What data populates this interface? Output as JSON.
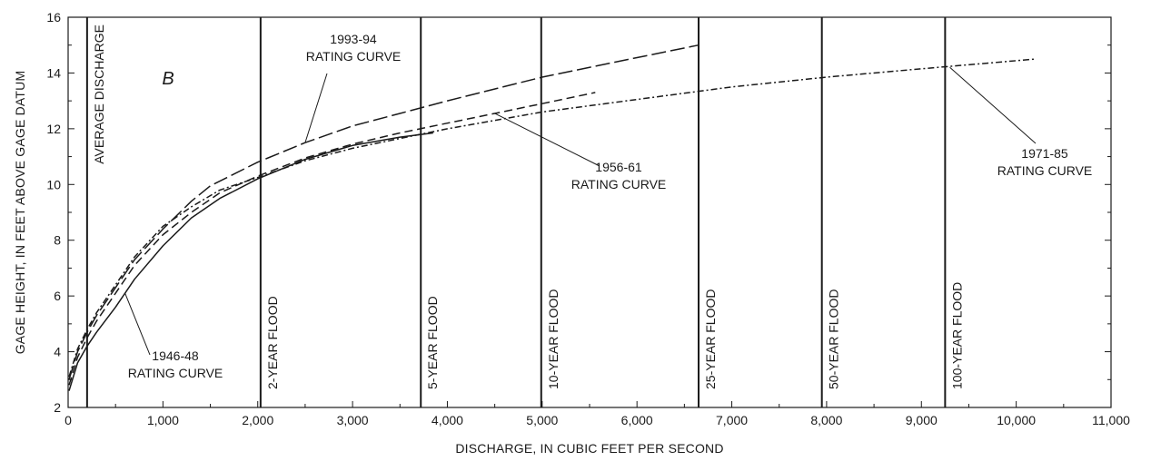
{
  "chart_data": {
    "type": "line",
    "panel_label": "B",
    "xlabel": "DISCHARGE, IN CUBIC FEET PER SECOND",
    "ylabel": "GAGE HEIGHT, IN FEET ABOVE GAGE DATUM",
    "xlim": [
      0,
      11000
    ],
    "ylim": [
      2,
      16
    ],
    "x_ticks": [
      0,
      1000,
      2000,
      3000,
      4000,
      5000,
      6000,
      7000,
      8000,
      9000,
      10000,
      11000
    ],
    "x_tick_labels": [
      "0",
      "1,000",
      "2,000",
      "3,000",
      "4,000",
      "5,000",
      "6,000",
      "7,000",
      "8,000",
      "9,000",
      "10,000",
      "11,000"
    ],
    "y_ticks": [
      2,
      4,
      6,
      8,
      10,
      12,
      14,
      16
    ],
    "y_tick_labels": [
      "2",
      "4",
      "6",
      "8",
      "10",
      "12",
      "14",
      "16"
    ],
    "grid": false,
    "legend": "none",
    "reference_lines": [
      {
        "x": 200,
        "label": "AVERAGE DISCHARGE"
      },
      {
        "x": 2030,
        "label": "2-YEAR FLOOD"
      },
      {
        "x": 3720,
        "label": "5-YEAR FLOOD"
      },
      {
        "x": 4990,
        "label": "10-YEAR FLOOD"
      },
      {
        "x": 6650,
        "label": "25-YEAR FLOOD"
      },
      {
        "x": 7950,
        "label": "50-YEAR FLOOD"
      },
      {
        "x": 9250,
        "label": "100-YEAR FLOOD"
      }
    ],
    "series": [
      {
        "name": "1946-48 RATING CURVE",
        "dash": "",
        "x": [
          10,
          100,
          200,
          300,
          500,
          700,
          1000,
          1300,
          1600,
          2000,
          2500,
          3000,
          3500,
          3850
        ],
        "y": [
          2.6,
          3.6,
          4.2,
          4.7,
          5.6,
          6.6,
          7.8,
          8.8,
          9.5,
          10.2,
          10.9,
          11.4,
          11.7,
          11.85
        ]
      },
      {
        "name": "1956-61 RATING CURVE",
        "dash": "9,5",
        "x": [
          10,
          100,
          200,
          300,
          500,
          700,
          1000,
          1300,
          1600,
          2000,
          2500,
          3000,
          3500,
          4000,
          4500,
          5000,
          5560
        ],
        "y": [
          2.8,
          3.8,
          4.5,
          5.1,
          6.1,
          7.1,
          8.2,
          9.0,
          9.7,
          10.3,
          10.95,
          11.45,
          11.85,
          12.2,
          12.55,
          12.9,
          13.3
        ]
      },
      {
        "name": "1971-85 RATING CURVE",
        "dash": "7,3,2,3",
        "x": [
          10,
          100,
          200,
          300,
          500,
          700,
          1000,
          1300,
          1600,
          2000,
          2500,
          3000,
          3500,
          4000,
          5000,
          6000,
          7000,
          8000,
          9000,
          10200
        ],
        "y": [
          3.1,
          4.1,
          4.8,
          5.4,
          6.4,
          7.4,
          8.5,
          9.2,
          9.8,
          10.25,
          10.85,
          11.3,
          11.65,
          12.0,
          12.6,
          13.05,
          13.5,
          13.85,
          14.15,
          14.5
        ]
      },
      {
        "name": "1993-94 RATING CURVE",
        "dash": "16,5",
        "x": [
          10,
          100,
          200,
          300,
          500,
          700,
          1000,
          1300,
          1500,
          2000,
          2500,
          3000,
          3500,
          4000,
          5000,
          6000,
          6650
        ],
        "y": [
          3.0,
          4.0,
          4.7,
          5.3,
          6.3,
          7.3,
          8.4,
          9.4,
          9.95,
          10.8,
          11.5,
          12.1,
          12.55,
          13.0,
          13.85,
          14.55,
          15.0
        ]
      }
    ],
    "annotations": [
      {
        "series": "1993-94 RATING CURVE",
        "lines": [
          "1993-94",
          "RATING CURVE"
        ],
        "pointer": [
          2500,
          11.5
        ]
      },
      {
        "series": "1956-61 RATING CURVE",
        "lines": [
          "1956-61",
          "RATING CURVE"
        ],
        "pointer": [
          4500,
          12.55
        ]
      },
      {
        "series": "1971-85 RATING CURVE",
        "lines": [
          "1971-85",
          "RATING CURVE"
        ],
        "pointer": [
          9300,
          14.2
        ]
      },
      {
        "series": "1946-48 RATING CURVE",
        "lines": [
          "1946-48",
          "RATING CURVE"
        ],
        "pointer": [
          600,
          6.1
        ]
      }
    ]
  }
}
